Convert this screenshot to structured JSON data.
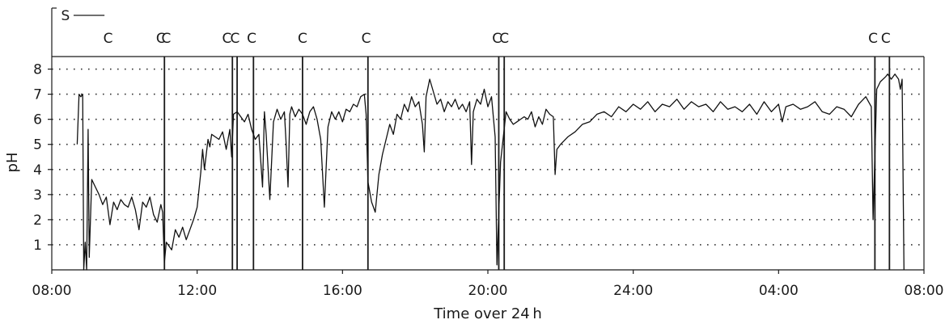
{
  "chart_data": {
    "type": "line",
    "title": "",
    "xlabel": "Time over 24 h",
    "ylabel": "pH",
    "ylim": [
      0,
      8.5
    ],
    "xlim": [
      0,
      24
    ],
    "x_ticks": [
      {
        "pos": 0,
        "label": "08:00"
      },
      {
        "pos": 4,
        "label": "12:00"
      },
      {
        "pos": 8,
        "label": "16:00"
      },
      {
        "pos": 12,
        "label": "20:00"
      },
      {
        "pos": 16,
        "label": "24:00"
      },
      {
        "pos": 20,
        "label": "04:00"
      },
      {
        "pos": 24,
        "label": "08:00"
      }
    ],
    "y_ticks": [
      1,
      2,
      3,
      4,
      5,
      6,
      7,
      8
    ],
    "grid": "dotted horizontal",
    "supine_marker": {
      "label": "S",
      "start": 0.6,
      "end": 1.45
    },
    "meal_label": "C",
    "meal_markers": [
      {
        "x": 1.55,
        "line_x": 3.1
      },
      {
        "x": 3.0
      },
      {
        "x": 3.15
      },
      {
        "x": 4.82,
        "line_x": 4.97
      },
      {
        "x": 5.04,
        "line_x": 5.1
      },
      {
        "x": 5.5,
        "line_x": 5.55
      },
      {
        "x": 6.9,
        "line_x": 6.9
      },
      {
        "x": 8.65,
        "line_x": 8.7
      },
      {
        "x": 12.25,
        "line_x": 12.3
      },
      {
        "x": 12.45,
        "line_x": 12.45
      },
      {
        "x": 22.6,
        "line_x": 22.65
      },
      {
        "x": 22.95,
        "line_x": 23.05
      }
    ],
    "series": [
      {
        "values": [
          [
            0.7,
            5.0
          ],
          [
            0.75,
            7.0
          ],
          [
            0.8,
            6.9
          ],
          [
            0.85,
            7.0
          ],
          [
            0.88,
            0.0
          ],
          [
            0.92,
            1.1
          ],
          [
            0.96,
            0.0
          ],
          [
            1.0,
            5.6
          ],
          [
            1.03,
            0.5
          ],
          [
            1.1,
            3.6
          ],
          [
            1.2,
            3.3
          ],
          [
            1.3,
            3.0
          ],
          [
            1.4,
            2.6
          ],
          [
            1.5,
            2.9
          ],
          [
            1.6,
            1.8
          ],
          [
            1.7,
            2.7
          ],
          [
            1.8,
            2.4
          ],
          [
            1.9,
            2.8
          ],
          [
            2.0,
            2.6
          ],
          [
            2.1,
            2.5
          ],
          [
            2.2,
            2.9
          ],
          [
            2.3,
            2.4
          ],
          [
            2.4,
            1.6
          ],
          [
            2.5,
            2.7
          ],
          [
            2.6,
            2.5
          ],
          [
            2.7,
            2.9
          ],
          [
            2.8,
            2.2
          ],
          [
            2.9,
            1.9
          ],
          [
            3.0,
            2.6
          ],
          [
            3.05,
            2.3
          ],
          [
            3.1,
            0.3
          ],
          [
            3.15,
            1.1
          ],
          [
            3.3,
            0.8
          ],
          [
            3.4,
            1.6
          ],
          [
            3.5,
            1.3
          ],
          [
            3.6,
            1.7
          ],
          [
            3.7,
            1.2
          ],
          [
            3.8,
            1.6
          ],
          [
            3.9,
            2.0
          ],
          [
            4.0,
            2.5
          ],
          [
            4.1,
            3.9
          ],
          [
            4.15,
            4.8
          ],
          [
            4.2,
            4.0
          ],
          [
            4.3,
            5.2
          ],
          [
            4.35,
            4.9
          ],
          [
            4.4,
            5.4
          ],
          [
            4.5,
            5.3
          ],
          [
            4.6,
            5.2
          ],
          [
            4.7,
            5.5
          ],
          [
            4.8,
            4.8
          ],
          [
            4.9,
            5.6
          ],
          [
            4.95,
            4.5
          ],
          [
            5.0,
            6.2
          ],
          [
            5.1,
            6.3
          ],
          [
            5.2,
            6.1
          ],
          [
            5.3,
            5.9
          ],
          [
            5.4,
            6.2
          ],
          [
            5.5,
            5.6
          ],
          [
            5.6,
            5.2
          ],
          [
            5.7,
            5.4
          ],
          [
            5.8,
            3.3
          ],
          [
            5.85,
            6.3
          ],
          [
            5.9,
            5.4
          ],
          [
            6.0,
            2.8
          ],
          [
            6.1,
            5.9
          ],
          [
            6.2,
            6.4
          ],
          [
            6.3,
            6.0
          ],
          [
            6.4,
            6.3
          ],
          [
            6.45,
            5.0
          ],
          [
            6.5,
            3.3
          ],
          [
            6.55,
            6.2
          ],
          [
            6.6,
            6.5
          ],
          [
            6.7,
            6.1
          ],
          [
            6.8,
            6.4
          ],
          [
            6.9,
            6.2
          ],
          [
            7.0,
            5.8
          ],
          [
            7.1,
            6.3
          ],
          [
            7.2,
            6.5
          ],
          [
            7.3,
            6.0
          ],
          [
            7.4,
            5.2
          ],
          [
            7.5,
            2.5
          ],
          [
            7.6,
            5.7
          ],
          [
            7.7,
            6.3
          ],
          [
            7.8,
            6.0
          ],
          [
            7.9,
            6.3
          ],
          [
            8.0,
            5.9
          ],
          [
            8.1,
            6.4
          ],
          [
            8.2,
            6.3
          ],
          [
            8.3,
            6.6
          ],
          [
            8.4,
            6.5
          ],
          [
            8.5,
            6.9
          ],
          [
            8.6,
            7.0
          ],
          [
            8.65,
            6.2
          ],
          [
            8.7,
            3.5
          ],
          [
            8.8,
            2.7
          ],
          [
            8.9,
            2.3
          ],
          [
            9.0,
            3.8
          ],
          [
            9.1,
            4.6
          ],
          [
            9.2,
            5.2
          ],
          [
            9.3,
            5.8
          ],
          [
            9.4,
            5.4
          ],
          [
            9.5,
            6.2
          ],
          [
            9.6,
            6.0
          ],
          [
            9.7,
            6.6
          ],
          [
            9.8,
            6.3
          ],
          [
            9.9,
            6.9
          ],
          [
            10.0,
            6.5
          ],
          [
            10.1,
            6.7
          ],
          [
            10.2,
            5.8
          ],
          [
            10.25,
            4.7
          ],
          [
            10.3,
            6.9
          ],
          [
            10.4,
            7.6
          ],
          [
            10.5,
            7.1
          ],
          [
            10.6,
            6.6
          ],
          [
            10.7,
            6.8
          ],
          [
            10.8,
            6.3
          ],
          [
            10.9,
            6.7
          ],
          [
            11.0,
            6.5
          ],
          [
            11.1,
            6.8
          ],
          [
            11.2,
            6.4
          ],
          [
            11.3,
            6.6
          ],
          [
            11.4,
            6.3
          ],
          [
            11.5,
            6.7
          ],
          [
            11.55,
            4.2
          ],
          [
            11.6,
            6.3
          ],
          [
            11.7,
            6.8
          ],
          [
            11.8,
            6.6
          ],
          [
            11.9,
            7.2
          ],
          [
            12.0,
            6.5
          ],
          [
            12.1,
            6.9
          ],
          [
            12.2,
            5.3
          ],
          [
            12.25,
            0.2
          ],
          [
            12.35,
            4.3
          ],
          [
            12.5,
            6.3
          ],
          [
            12.6,
            6.0
          ],
          [
            12.7,
            5.8
          ],
          [
            12.8,
            5.9
          ],
          [
            12.9,
            6.0
          ],
          [
            13.0,
            6.1
          ],
          [
            13.1,
            6.0
          ],
          [
            13.2,
            6.3
          ],
          [
            13.3,
            5.7
          ],
          [
            13.4,
            6.1
          ],
          [
            13.5,
            5.8
          ],
          [
            13.6,
            6.4
          ],
          [
            13.7,
            6.2
          ],
          [
            13.8,
            6.1
          ],
          [
            13.85,
            3.8
          ],
          [
            13.9,
            4.8
          ],
          [
            14.0,
            5.0
          ],
          [
            14.2,
            5.3
          ],
          [
            14.4,
            5.5
          ],
          [
            14.6,
            5.8
          ],
          [
            14.8,
            5.9
          ],
          [
            15.0,
            6.2
          ],
          [
            15.2,
            6.3
          ],
          [
            15.4,
            6.1
          ],
          [
            15.6,
            6.5
          ],
          [
            15.8,
            6.3
          ],
          [
            16.0,
            6.6
          ],
          [
            16.2,
            6.4
          ],
          [
            16.4,
            6.7
          ],
          [
            16.6,
            6.3
          ],
          [
            16.8,
            6.6
          ],
          [
            17.0,
            6.5
          ],
          [
            17.2,
            6.8
          ],
          [
            17.4,
            6.4
          ],
          [
            17.6,
            6.7
          ],
          [
            17.8,
            6.5
          ],
          [
            18.0,
            6.6
          ],
          [
            18.2,
            6.3
          ],
          [
            18.4,
            6.7
          ],
          [
            18.6,
            6.4
          ],
          [
            18.8,
            6.5
          ],
          [
            19.0,
            6.3
          ],
          [
            19.2,
            6.6
          ],
          [
            19.4,
            6.2
          ],
          [
            19.6,
            6.7
          ],
          [
            19.8,
            6.3
          ],
          [
            20.0,
            6.6
          ],
          [
            20.1,
            5.9
          ],
          [
            20.2,
            6.5
          ],
          [
            20.4,
            6.6
          ],
          [
            20.6,
            6.4
          ],
          [
            20.8,
            6.5
          ],
          [
            21.0,
            6.7
          ],
          [
            21.2,
            6.3
          ],
          [
            21.4,
            6.2
          ],
          [
            21.6,
            6.5
          ],
          [
            21.8,
            6.4
          ],
          [
            22.0,
            6.1
          ],
          [
            22.2,
            6.6
          ],
          [
            22.4,
            6.9
          ],
          [
            22.55,
            6.5
          ],
          [
            22.6,
            2.0
          ],
          [
            22.7,
            7.2
          ],
          [
            22.8,
            7.5
          ],
          [
            22.95,
            7.7
          ],
          [
            23.0,
            7.8
          ],
          [
            23.1,
            7.6
          ],
          [
            23.2,
            7.8
          ],
          [
            23.3,
            7.6
          ],
          [
            23.35,
            7.2
          ],
          [
            23.4,
            7.6
          ],
          [
            23.45,
            0.0
          ]
        ]
      }
    ]
  }
}
